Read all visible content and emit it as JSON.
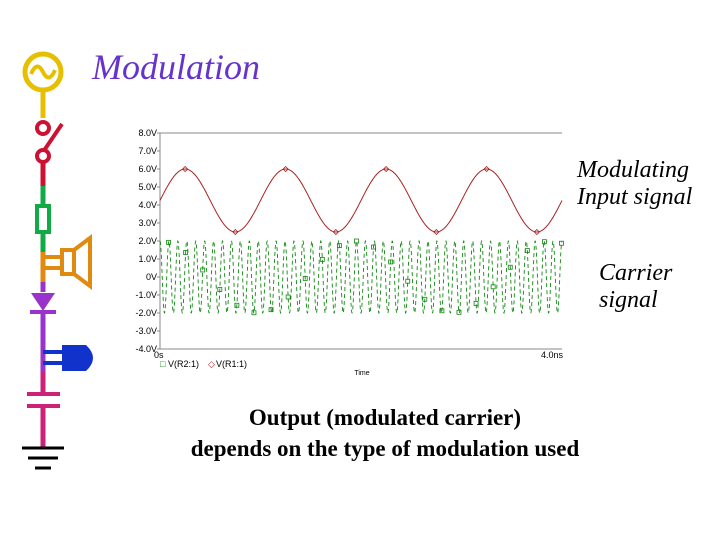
{
  "slide": {
    "title": "Modulation",
    "annotations": {
      "modulating": [
        "Modulating",
        "Input signal"
      ],
      "carrier": [
        "Carrier",
        "signal"
      ]
    },
    "caption": [
      "Output (modulated carrier)",
      "depends on the type of modulation used"
    ]
  },
  "chart_data": {
    "type": "line",
    "title": "",
    "xlabel": "Time",
    "ylabel": "",
    "x_tick_labels": [
      "0s",
      "4.0ns"
    ],
    "xlim": [
      0,
      4.0
    ],
    "x_unit": "ns",
    "y_tick_labels": [
      "8.0V",
      "7.0V",
      "6.0V",
      "5.0V",
      "4.0V",
      "3.0V",
      "2.0V",
      "1.0V",
      "0V",
      "-1.0V",
      "-2.0V",
      "-3.0V",
      "-4.0V"
    ],
    "ylim": [
      -4.0,
      8.0
    ],
    "legend": [
      {
        "marker": "□",
        "label": "V(R2:1)",
        "color": "#118811"
      },
      {
        "marker": "◇",
        "label": "V(R1:1)",
        "color": "#aa2222"
      }
    ],
    "series": [
      {
        "name": "V(R1:1)",
        "kind": "sine",
        "color": "#aa2222",
        "offset": 4.25,
        "amplitude": 1.75,
        "cycles": 4,
        "peak_at_x": 0.25
      },
      {
        "name": "V(R2:1)",
        "kind": "sine",
        "color": "#118811",
        "offset": 0.0,
        "amplitude": 2.0,
        "cycles": 45,
        "peak_at_x": 0.0
      }
    ]
  },
  "colors": {
    "title": "#6633cc",
    "strip_yellow": "#e6c000",
    "strip_red": "#cc1133",
    "strip_green": "#11aa44",
    "strip_orange": "#e08a10",
    "strip_purple": "#9933cc",
    "strip_blue": "#1133cc",
    "strip_pink": "#cc2277"
  },
  "icons": [
    "ac-source-icon",
    "switch-icon",
    "resistor-icon",
    "speaker-icon",
    "diode-icon",
    "battery-icon",
    "capacitor-icon",
    "ground-icon"
  ]
}
